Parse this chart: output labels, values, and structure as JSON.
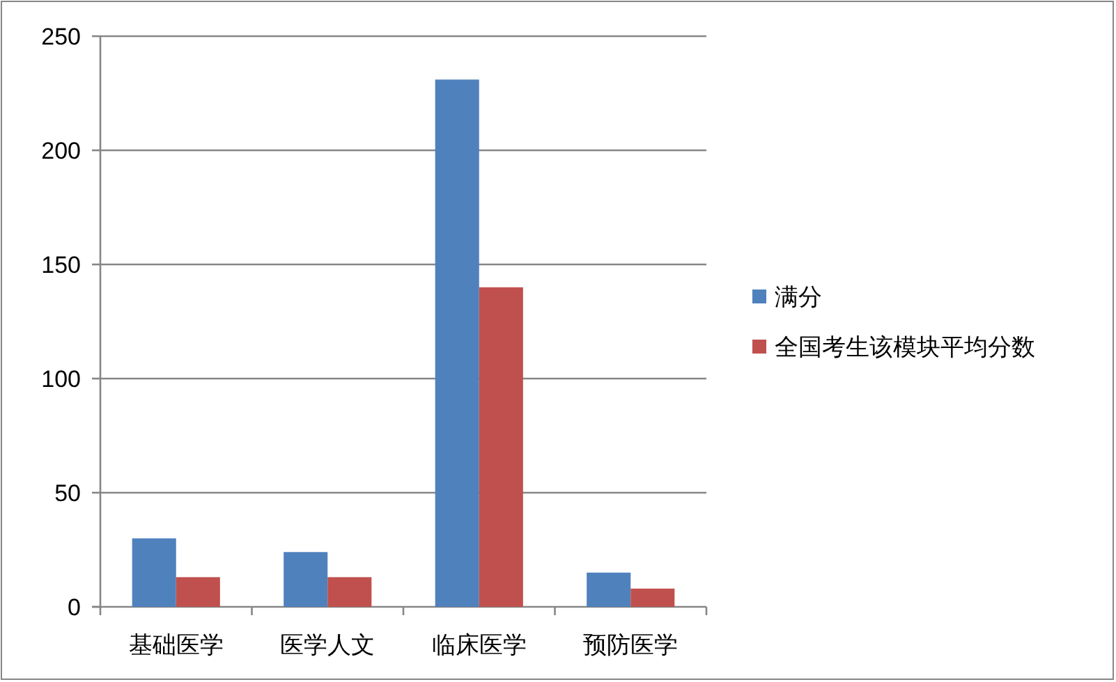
{
  "chart_data": {
    "type": "bar",
    "categories": [
      "基础医学",
      "医学人文",
      "临床医学",
      "预防医学"
    ],
    "series": [
      {
        "name": "满分",
        "color": "#4f81bd",
        "values": [
          30,
          24,
          231,
          15
        ]
      },
      {
        "name": "全国考生该模块平均分数",
        "color": "#c0504d",
        "values": [
          13,
          13,
          140,
          8
        ]
      }
    ],
    "ylim": [
      0,
      250
    ],
    "yticks": [
      0,
      50,
      100,
      150,
      200,
      250
    ],
    "grid": "y",
    "legend": "right"
  }
}
